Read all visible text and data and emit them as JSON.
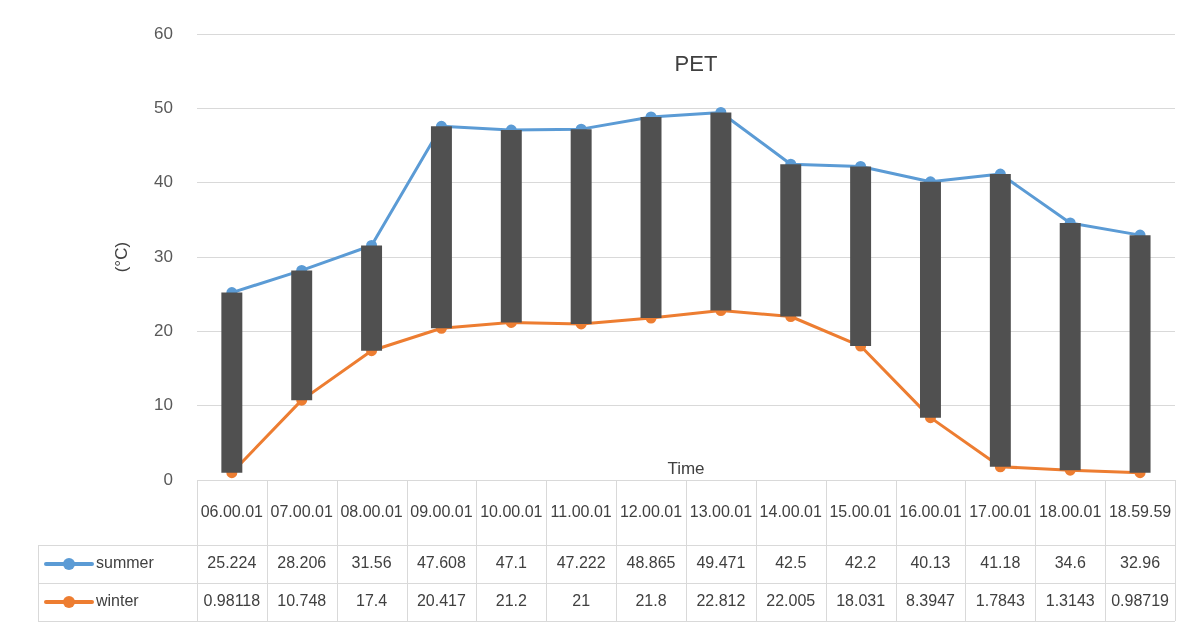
{
  "chart_data": {
    "type": "line",
    "title": "PET",
    "xlabel": "Time",
    "ylabel": "(°C)",
    "categories": [
      "06.00.01",
      "07.00.01",
      "08.00.01",
      "09.00.01",
      "10.00.01",
      "11.00.01",
      "12.00.01",
      "13.00.01",
      "14.00.01",
      "15.00.01",
      "16.00.01",
      "17.00.01",
      "18.00.01",
      "18.59.59"
    ],
    "series": [
      {
        "name": "summer",
        "color": "#5b9bd5",
        "values": [
          25.224,
          28.206,
          31.56,
          47.608,
          47.1,
          47.222,
          48.865,
          49.471,
          42.5,
          42.2,
          40.13,
          41.18,
          34.6,
          32.96
        ],
        "value_labels": [
          "25.224",
          "28.206",
          "31.56",
          "47.608",
          "47.1",
          "47.222",
          "48.865",
          "49.471",
          "42.5",
          "42.2",
          "40.13",
          "41.18",
          "34.6",
          "32.96"
        ]
      },
      {
        "name": "winter",
        "color": "#ed7d31",
        "values": [
          0.98118,
          10.748,
          17.4,
          20.417,
          21.2,
          21,
          21.8,
          22.812,
          22.005,
          18.031,
          8.3947,
          1.7843,
          1.3143,
          0.98719
        ],
        "value_labels": [
          "0.98118",
          "10.748",
          "17.4",
          "20.417",
          "21.2",
          "21",
          "21.8",
          "22.812",
          "22.005",
          "18.031",
          "8.3947",
          "1.7843",
          "1.3143",
          "0.98719"
        ]
      },
      {
        "type": "bar",
        "color": "#505050",
        "base": [
          0.98118,
          10.748,
          17.4,
          20.417,
          21.2,
          21,
          21.8,
          22.812,
          22.005,
          18.031,
          8.3947,
          1.7843,
          1.3143,
          0.98719
        ],
        "values": [
          24.24,
          17.46,
          14.16,
          27.19,
          25.9,
          26.22,
          27.07,
          26.66,
          20.5,
          24.17,
          31.74,
          39.4,
          33.29,
          31.97
        ]
      }
    ],
    "ylim": [
      0,
      60
    ],
    "yticks": [
      0,
      10,
      20,
      30,
      40,
      50,
      60
    ],
    "grid": "y",
    "marker": "circle",
    "legend": "bottom"
  }
}
